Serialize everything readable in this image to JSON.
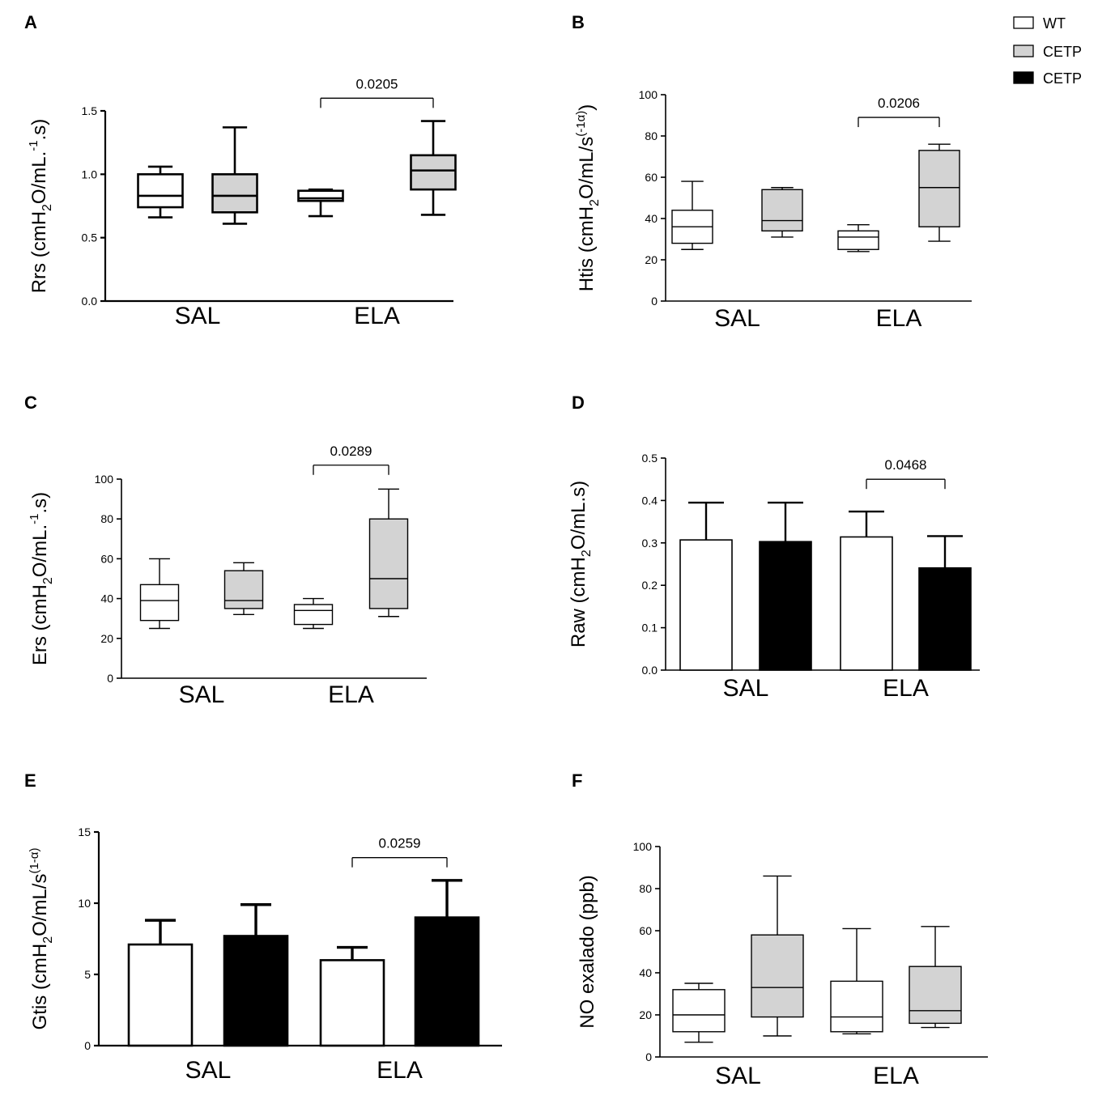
{
  "legend": {
    "items": [
      {
        "label": "WT",
        "color": "#ffffff"
      },
      {
        "label": "CETP",
        "color": "#d3d3d3"
      },
      {
        "label": "CETP",
        "color": "#000000"
      }
    ]
  },
  "colors": {
    "wt": "#ffffff",
    "cetp_gray": "#d3d3d3",
    "cetp_black": "#000000",
    "axis": "#000000"
  },
  "chart_data": [
    {
      "id": "A",
      "panel_label": "A",
      "type": "box",
      "ylabel": {
        "main": "Rrs (cmH",
        "sub": "2",
        "mid": "O/mL.",
        "sup": "-1",
        "end": ".s)"
      },
      "ylim": [
        0,
        1.5
      ],
      "yticks": [
        "0.0",
        "0.5",
        "1.0",
        "1.5"
      ],
      "ytick_values": [
        0,
        0.5,
        1.0,
        1.5
      ],
      "categories": [
        "SAL",
        "ELA"
      ],
      "series": [
        {
          "name": "WT",
          "boxes": [
            {
              "min": 0.66,
              "q1": 0.74,
              "median": 0.83,
              "q3": 1.0,
              "max": 1.06
            },
            {
              "min": 0.67,
              "q1": 0.79,
              "median": 0.81,
              "q3": 0.87,
              "max": 0.88
            }
          ]
        },
        {
          "name": "CETP",
          "boxes": [
            {
              "min": 0.61,
              "q1": 0.7,
              "median": 0.83,
              "q3": 1.0,
              "max": 1.37
            },
            {
              "min": 0.68,
              "q1": 0.88,
              "median": 1.03,
              "q3": 1.15,
              "max": 1.42
            }
          ]
        }
      ],
      "bracket": {
        "group": 1,
        "label": "0.0205",
        "y": 1.6
      }
    },
    {
      "id": "B",
      "panel_label": "B",
      "type": "box",
      "ylabel": {
        "main": "Htis (cmH",
        "sub": "2",
        "mid": "O/mL/s",
        "sup": "(-1α)",
        "end": ")"
      },
      "ylim": [
        0,
        100
      ],
      "yticks": [
        "0",
        "20",
        "40",
        "60",
        "80",
        "100"
      ],
      "ytick_values": [
        0,
        20,
        40,
        60,
        80,
        100
      ],
      "categories": [
        "SAL",
        "ELA"
      ],
      "series": [
        {
          "name": "WT",
          "boxes": [
            {
              "min": 25,
              "q1": 28,
              "median": 36,
              "q3": 44,
              "max": 58
            },
            {
              "min": 24,
              "q1": 25,
              "median": 31,
              "q3": 34,
              "max": 37
            }
          ]
        },
        {
          "name": "CETP",
          "boxes": [
            {
              "min": 31,
              "q1": 34,
              "median": 39,
              "q3": 54,
              "max": 55
            },
            {
              "min": 29,
              "q1": 36,
              "median": 55,
              "q3": 73,
              "max": 76
            }
          ]
        }
      ],
      "bracket": {
        "group": 1,
        "label": "0.0206",
        "y": 89
      }
    },
    {
      "id": "C",
      "panel_label": "C",
      "type": "box",
      "ylabel": {
        "main": "Ers (cmH",
        "sub": "2",
        "mid": "O/mL.",
        "sup": "-1",
        "end": ".s)"
      },
      "ylim": [
        0,
        100
      ],
      "yticks": [
        "0",
        "20",
        "40",
        "60",
        "80",
        "100"
      ],
      "ytick_values": [
        0,
        20,
        40,
        60,
        80,
        100
      ],
      "categories": [
        "SAL",
        "ELA"
      ],
      "series": [
        {
          "name": "WT",
          "boxes": [
            {
              "min": 25,
              "q1": 29,
              "median": 39,
              "q3": 47,
              "max": 60
            },
            {
              "min": 25,
              "q1": 27,
              "median": 34,
              "q3": 37,
              "max": 40
            }
          ]
        },
        {
          "name": "CETP",
          "boxes": [
            {
              "min": 32,
              "q1": 35,
              "median": 39,
              "q3": 54,
              "max": 58
            },
            {
              "min": 31,
              "q1": 35,
              "median": 50,
              "q3": 80,
              "max": 95
            }
          ]
        }
      ],
      "bracket": {
        "group": 1,
        "label": "0.0289",
        "y": 107
      }
    },
    {
      "id": "D",
      "panel_label": "D",
      "type": "bar",
      "ylabel": {
        "main": "Raw (cmH",
        "sub": "2",
        "mid": "O/mL.s)",
        "sup": "",
        "end": ""
      },
      "ylim": [
        0,
        0.5
      ],
      "yticks": [
        "0.0",
        "0.1",
        "0.2",
        "0.3",
        "0.4",
        "0.5"
      ],
      "ytick_values": [
        0,
        0.1,
        0.2,
        0.3,
        0.4,
        0.5
      ],
      "categories": [
        "SAL",
        "ELA"
      ],
      "series": [
        {
          "name": "WT",
          "values": [
            0.307,
            0.314
          ],
          "errors": [
            0.088,
            0.06
          ]
        },
        {
          "name": "CETP",
          "values": [
            0.303,
            0.241
          ],
          "errors": [
            0.092,
            0.075
          ]
        }
      ],
      "bracket": {
        "group": 1,
        "label": "0.0468",
        "y": 0.45
      }
    },
    {
      "id": "E",
      "panel_label": "E",
      "type": "bar",
      "ylabel": {
        "main": "Gtis (cmH",
        "sub": "2",
        "mid": "O/mL/s",
        "sup": "(1-α)",
        "end": ""
      },
      "ylim": [
        0,
        15
      ],
      "yticks": [
        "0",
        "5",
        "10",
        "15"
      ],
      "ytick_values": [
        0,
        5,
        10,
        15
      ],
      "categories": [
        "SAL",
        "ELA"
      ],
      "series": [
        {
          "name": "WT",
          "values": [
            7.1,
            6.0
          ],
          "errors": [
            1.7,
            0.9
          ]
        },
        {
          "name": "CETP",
          "values": [
            7.7,
            9.0
          ],
          "errors": [
            2.2,
            2.6
          ]
        }
      ],
      "bracket": {
        "group": 1,
        "label": "0.0259",
        "y": 13.2
      }
    },
    {
      "id": "F",
      "panel_label": "F",
      "type": "box",
      "ylabel": {
        "main": "NO exalado (ppb)",
        "sub": "",
        "mid": "",
        "sup": "",
        "end": ""
      },
      "ylim": [
        0,
        100
      ],
      "yticks": [
        "0",
        "20",
        "40",
        "60",
        "80",
        "100"
      ],
      "ytick_values": [
        0,
        20,
        40,
        60,
        80,
        100
      ],
      "categories": [
        "SAL",
        "ELA"
      ],
      "series": [
        {
          "name": "WT",
          "boxes": [
            {
              "min": 7,
              "q1": 12,
              "median": 20,
              "q3": 32,
              "max": 35
            },
            {
              "min": 11,
              "q1": 12,
              "median": 19,
              "q3": 36,
              "max": 61
            }
          ]
        },
        {
          "name": "CETP",
          "boxes": [
            {
              "min": 10,
              "q1": 19,
              "median": 33,
              "q3": 58,
              "max": 86
            },
            {
              "min": 14,
              "q1": 16,
              "median": 22,
              "q3": 43,
              "max": 62
            }
          ]
        }
      ],
      "bracket": null
    }
  ]
}
